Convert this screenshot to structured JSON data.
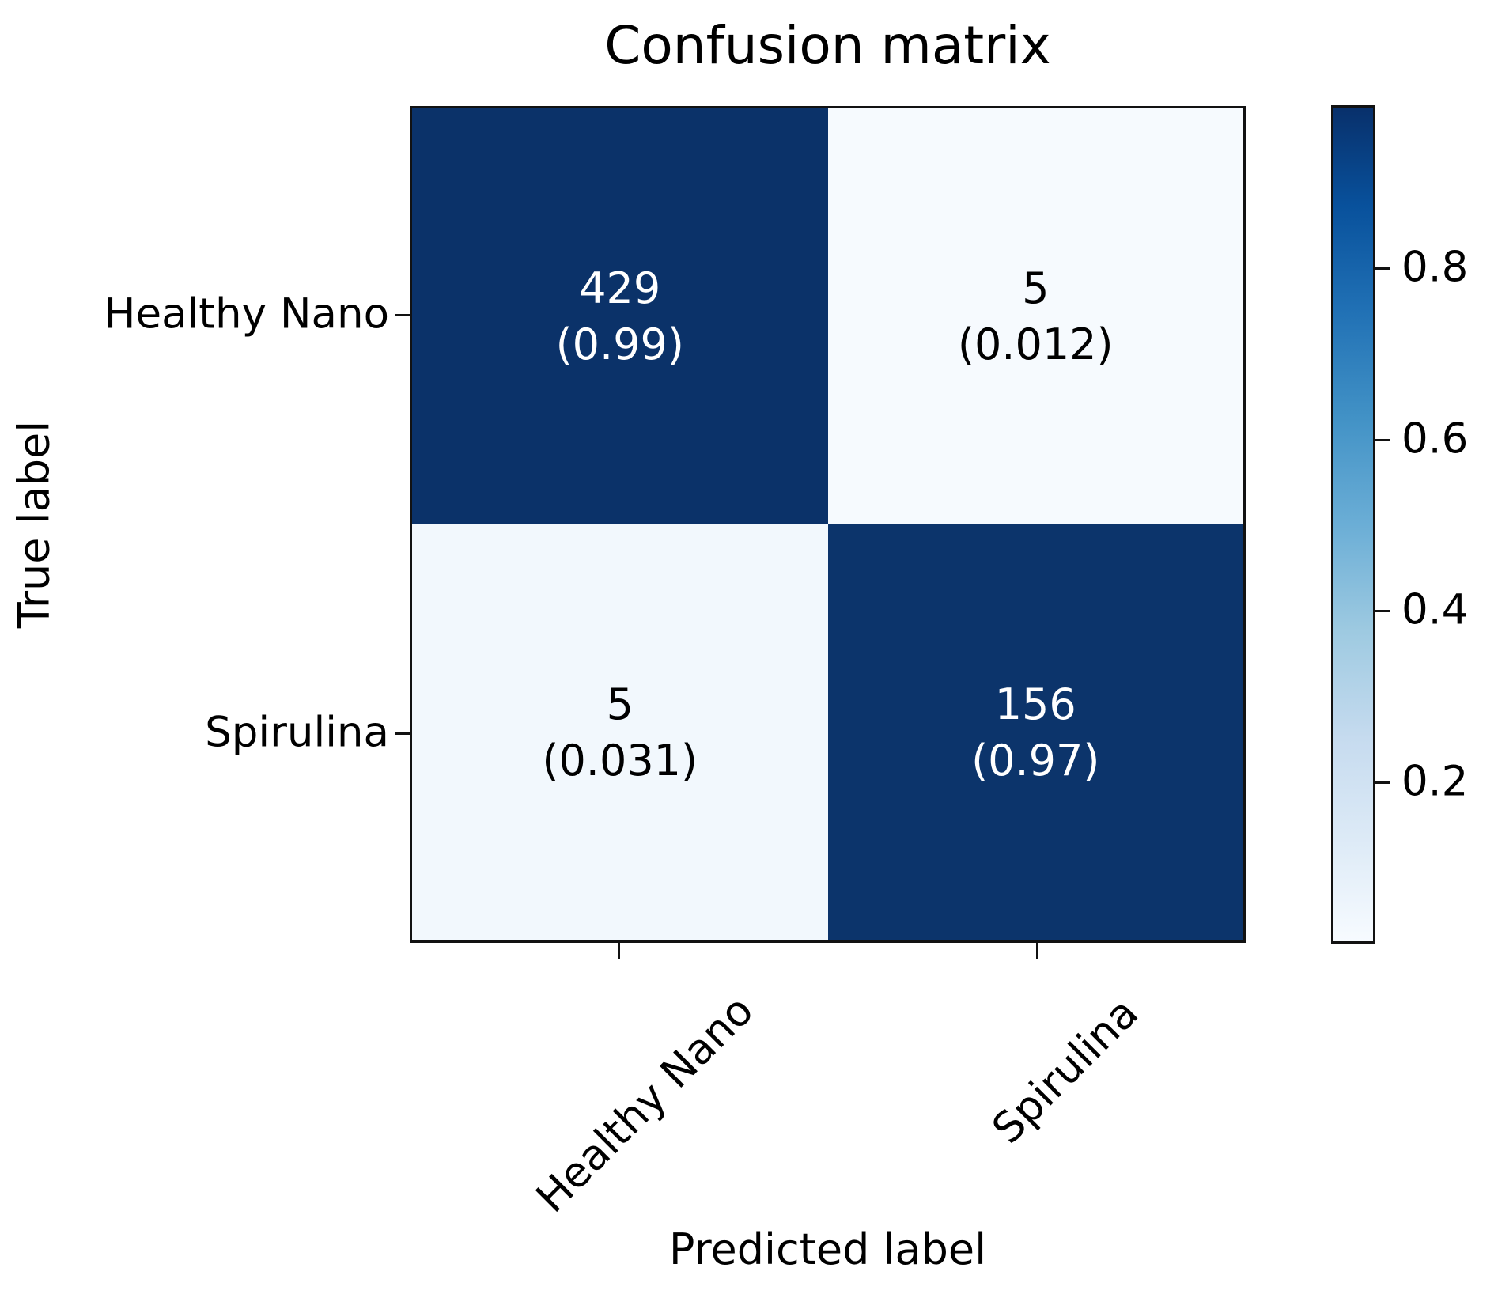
{
  "chart_data": {
    "type": "heatmap",
    "title": "Confusion matrix",
    "xlabel": "Predicted label",
    "ylabel": "True label",
    "x_tick_labels": [
      "Healthy Nano",
      "Spirulina"
    ],
    "y_tick_labels": [
      "Healthy Nano",
      "Spirulina"
    ],
    "counts": [
      [
        429,
        5
      ],
      [
        5,
        156
      ]
    ],
    "fractions": [
      [
        0.99,
        0.012
      ],
      [
        0.031,
        0.97
      ]
    ],
    "cells": [
      {
        "row": "Healthy Nano",
        "col": "Healthy Nano",
        "count": "429",
        "fraction": "(0.99)",
        "color": "#0b3269",
        "text_color": "#ffffff"
      },
      {
        "row": "Healthy Nano",
        "col": "Spirulina",
        "count": "5",
        "fraction": "(0.012)",
        "color": "#f6fafe",
        "text_color": "#000000"
      },
      {
        "row": "Spirulina",
        "col": "Healthy Nano",
        "count": "5",
        "fraction": "(0.031)",
        "color": "#f2f8fd",
        "text_color": "#000000"
      },
      {
        "row": "Spirulina",
        "col": "Spirulina",
        "count": "156",
        "fraction": "(0.97)",
        "color": "#0c346b",
        "text_color": "#ffffff"
      }
    ],
    "colorbar": {
      "colormap": "Blues",
      "tick_labels": [
        "0.8",
        "0.6",
        "0.4",
        "0.2"
      ],
      "range": [
        0.012,
        0.99
      ],
      "gradient_top": "#08306b",
      "gradient_bottom": "#f7fbff",
      "position": "right"
    },
    "grid": false,
    "legend": "none",
    "background": "#ffffff"
  }
}
